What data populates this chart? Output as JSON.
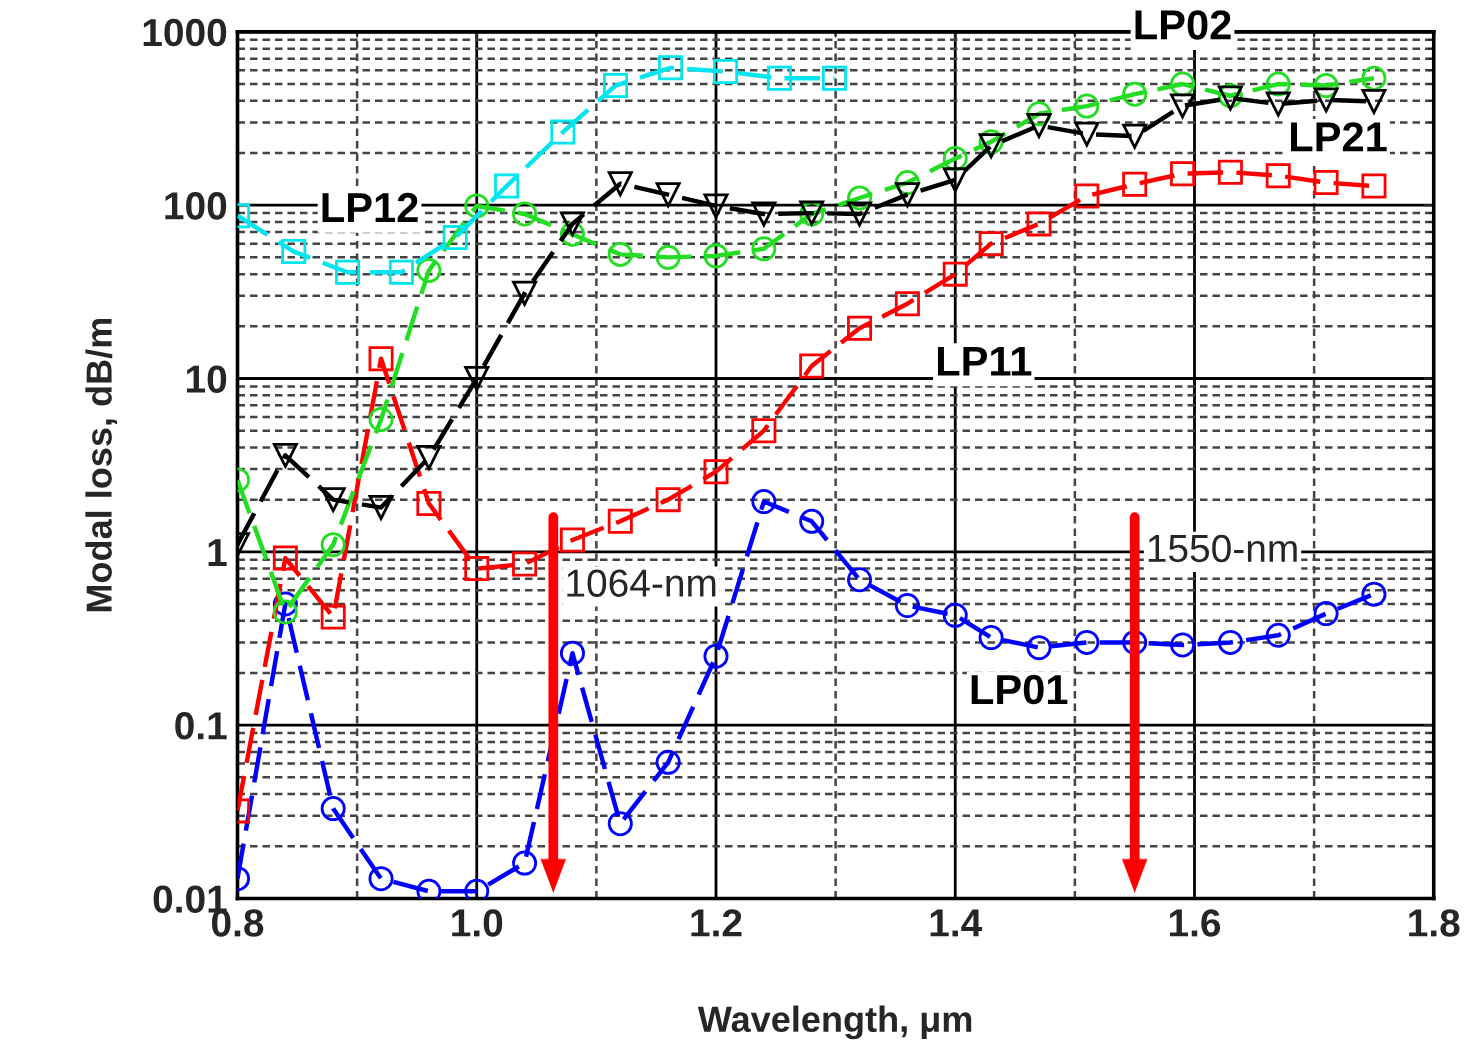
{
  "chart_data": {
    "type": "line",
    "xlabel": "Wavelength, μm",
    "ylabel": "Modal loss, dB/m",
    "log": "y",
    "xlim": [
      0.8,
      1.8
    ],
    "ylim": [
      0.01,
      1000
    ],
    "xticks": [
      0.8,
      {
        "value": 1.0,
        "label": "1.0"
      },
      1.2,
      1.4,
      1.6,
      1.8
    ],
    "yticks": [
      0.01,
      0.1,
      1,
      10,
      100,
      1000
    ],
    "grid": true,
    "line_style": "dashed",
    "x": [
      0.8,
      0.84,
      0.88,
      0.92,
      0.96,
      1.0,
      1.04,
      1.08,
      1.12,
      1.16,
      1.2,
      1.24,
      1.28,
      1.32,
      1.36,
      1.4,
      1.43,
      1.47,
      1.51,
      1.55,
      1.59,
      1.63,
      1.67,
      1.71,
      1.75
    ],
    "series": [
      {
        "name": "LP01",
        "color": "#0000ff",
        "marker": "circle",
        "values": [
          0.013,
          0.5,
          0.033,
          0.013,
          0.011,
          0.011,
          0.016,
          0.26,
          0.027,
          0.061,
          0.25,
          1.95,
          1.5,
          0.69,
          0.49,
          0.43,
          0.32,
          0.28,
          0.3,
          0.3,
          0.29,
          0.3,
          0.33,
          0.44,
          0.57
        ]
      },
      {
        "name": "LP11",
        "color": "#ff0000",
        "marker": "square",
        "values": [
          0.032,
          0.92,
          0.42,
          13,
          1.9,
          0.8,
          0.85,
          1.17,
          1.5,
          2.0,
          2.9,
          5.0,
          11.8,
          19.5,
          27,
          40,
          60,
          78,
          113,
          132,
          152,
          155,
          148,
          135,
          129
        ]
      },
      {
        "name": "LP02",
        "color": "#22dd22",
        "marker": "circle",
        "values": [
          2.6,
          0.45,
          1.1,
          5.8,
          42,
          99,
          89,
          68,
          52,
          50,
          51,
          56,
          89,
          110,
          135,
          186,
          232,
          337,
          373,
          437,
          500,
          428,
          500,
          490,
          540
        ]
      },
      {
        "name": "LP21",
        "color": "#000000",
        "marker": "triangle",
        "values": [
          1.1,
          3.6,
          2.0,
          1.8,
          3.5,
          10,
          31,
          78,
          133,
          115,
          99,
          89,
          90,
          89,
          115,
          140,
          220,
          288,
          257,
          250,
          374,
          415,
          383,
          405,
          396
        ]
      },
      {
        "name": "LP12",
        "color": "#00e5ee",
        "marker": "square",
        "x": [
          0.8,
          0.847,
          0.892,
          0.937,
          0.982,
          1.025,
          1.072,
          1.116,
          1.162,
          1.208,
          1.253,
          1.299
        ],
        "values": [
          87,
          54,
          41,
          41,
          65,
          129,
          264,
          490,
          620,
          590,
          540,
          540
        ]
      }
    ],
    "ref_lines": [
      {
        "axis": "x",
        "value": 1.064,
        "label": "1064-nm",
        "color": "#ff0000"
      },
      {
        "axis": "x",
        "value": 1.55,
        "label": "1550-nm",
        "color": "#ff0000"
      }
    ]
  }
}
